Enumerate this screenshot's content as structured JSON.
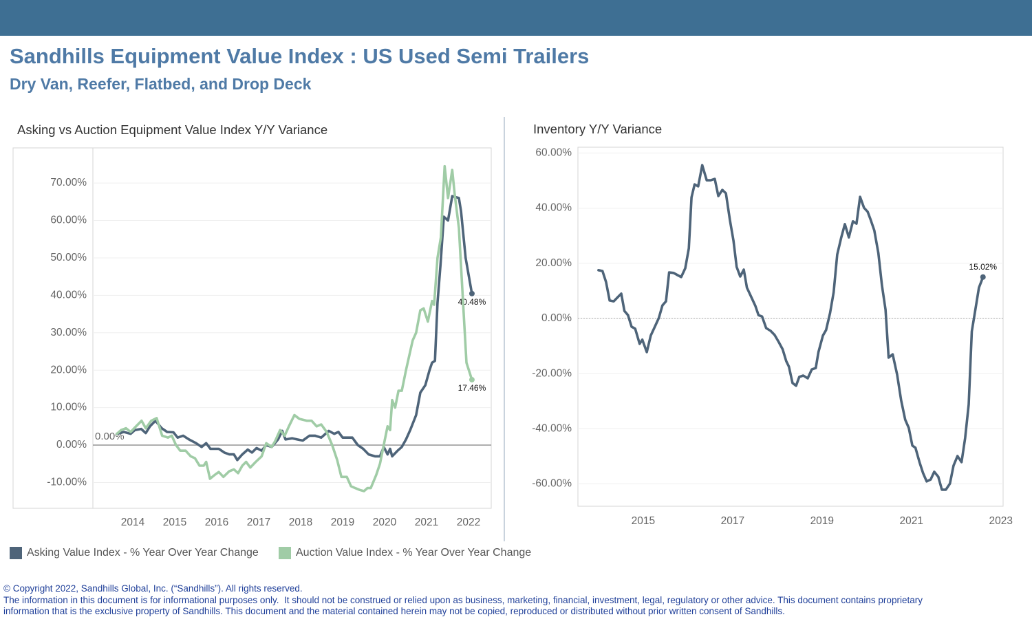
{
  "header": {
    "title": "Sandhills Equipment Value Index : US Used Semi Trailers",
    "subtitle": "Dry Van, Reefer, Flatbed, and Drop Deck"
  },
  "chart_data": [
    {
      "type": "line",
      "title": "Asking vs Auction Equipment Value Index Y/Y Variance",
      "xlim": [
        2013.05,
        2022.54
      ],
      "xticks": [
        2014,
        2015,
        2016,
        2017,
        2018,
        2019,
        2020,
        2021,
        2022
      ],
      "ylim": [
        -16.9,
        79.4
      ],
      "yticks": [
        {
          "value": -10,
          "label": "-10.00%"
        },
        {
          "value": 0,
          "label": "0.00%"
        },
        {
          "value": 10,
          "label": "10.00%"
        },
        {
          "value": 20,
          "label": "20.00%"
        },
        {
          "value": 30,
          "label": "30.00%"
        },
        {
          "value": 40,
          "label": "40.00%"
        },
        {
          "value": 50,
          "label": "50.00%"
        },
        {
          "value": 60,
          "label": "60.00%"
        },
        {
          "value": 70,
          "label": "70.00%"
        }
      ],
      "grid": true,
      "reference_line": {
        "value": 0,
        "label": "0.00%"
      },
      "series": [
        {
          "name": "Asking Value Index - % Year Over Year Change",
          "color": "#4e6479",
          "x": [
            2013.62,
            2013.79,
            2013.95,
            2014.05,
            2014.2,
            2014.31,
            2014.41,
            2014.54,
            2014.69,
            2014.82,
            2014.97,
            2015.07,
            2015.2,
            2015.34,
            2015.51,
            2015.64,
            2015.75,
            2015.85,
            2016.05,
            2016.18,
            2016.3,
            2016.41,
            2016.49,
            2016.61,
            2016.74,
            2016.84,
            2016.95,
            2017.07,
            2017.18,
            2017.31,
            2017.46,
            2017.56,
            2017.64,
            2017.8,
            2017.92,
            2018.05,
            2018.21,
            2018.34,
            2018.49,
            2018.67,
            2018.8,
            2018.9,
            2019.0,
            2019.11,
            2019.23,
            2019.36,
            2019.49,
            2019.62,
            2019.77,
            2019.89,
            2019.98,
            2020.07,
            2020.13,
            2020.18,
            2020.31,
            2020.41,
            2020.51,
            2020.61,
            2020.75,
            2020.85,
            2020.97,
            2021.07,
            2021.13,
            2021.2,
            2021.26,
            2021.33,
            2021.41,
            2021.51,
            2021.61,
            2021.77,
            2021.82,
            2021.93,
            2022.08
          ],
          "values": [
            3,
            3.5,
            3,
            4,
            4.3,
            3.2,
            5,
            6.5,
            4.5,
            3.5,
            3.4,
            2,
            2.5,
            1.5,
            0.5,
            -0.5,
            0.5,
            -1,
            -1,
            -2,
            -2.5,
            -2.5,
            -4,
            -2.5,
            -1.2,
            -2,
            -0.8,
            -1.5,
            0,
            -0.5,
            1.5,
            3.8,
            1.5,
            1.8,
            1.5,
            1.2,
            2.5,
            2.5,
            2,
            3.8,
            3,
            3.5,
            2,
            2,
            2,
            0,
            -1,
            -2.5,
            -3,
            -3,
            -0.5,
            -2.5,
            -1,
            -3,
            -1.5,
            -0.5,
            1.5,
            4,
            8,
            14,
            16,
            20,
            22,
            22.5,
            38,
            48,
            61,
            60,
            66.5,
            66,
            62.5,
            50,
            40.48
          ],
          "value_labels": [
            null,
            null,
            null,
            null,
            null,
            null,
            null,
            null,
            null,
            null,
            null,
            null,
            null,
            null,
            null,
            null,
            null,
            null,
            null,
            null,
            null,
            null,
            null,
            null,
            null,
            null,
            null,
            null,
            null,
            null,
            null,
            null,
            null,
            null,
            null,
            null,
            null,
            null,
            null,
            null,
            null,
            null,
            null,
            null,
            null,
            null,
            null,
            null,
            null,
            null,
            null,
            null,
            null,
            null,
            null,
            null,
            null,
            null,
            null,
            null,
            null,
            null,
            null,
            null,
            null,
            null,
            null,
            null,
            null,
            null,
            null,
            null,
            "40.48%"
          ]
        },
        {
          "name": "Auction Value Index - % Year Over Year Change",
          "color": "#a0cca6",
          "x": [
            2013.62,
            2013.72,
            2013.84,
            2013.95,
            2014.08,
            2014.21,
            2014.31,
            2014.44,
            2014.57,
            2014.7,
            2014.84,
            2014.93,
            2015.03,
            2015.13,
            2015.26,
            2015.38,
            2015.48,
            2015.59,
            2015.69,
            2015.75,
            2015.84,
            2015.95,
            2016.05,
            2016.16,
            2016.3,
            2016.41,
            2016.51,
            2016.61,
            2016.7,
            2016.8,
            2016.93,
            2017.07,
            2017.18,
            2017.31,
            2017.39,
            2017.51,
            2017.62,
            2017.72,
            2017.85,
            2017.97,
            2018.15,
            2018.26,
            2018.38,
            2018.49,
            2018.62,
            2018.75,
            2018.87,
            2018.97,
            2019.1,
            2019.2,
            2019.3,
            2019.41,
            2019.51,
            2019.59,
            2019.67,
            2019.8,
            2019.89,
            2019.98,
            2020.07,
            2020.13,
            2020.18,
            2020.25,
            2020.33,
            2020.41,
            2020.51,
            2020.61,
            2020.67,
            2020.75,
            2020.85,
            2020.93,
            2021.03,
            2021.13,
            2021.18,
            2021.26,
            2021.34,
            2021.43,
            2021.51,
            2021.61,
            2021.67,
            2021.77,
            2021.87,
            2021.95,
            2022.08
          ],
          "values": [
            3,
            4,
            4.5,
            3.5,
            5,
            6.5,
            4.5,
            6.5,
            7.2,
            2.5,
            2,
            2.5,
            0,
            -1.5,
            -1.5,
            -3,
            -3.5,
            -5.5,
            -5.5,
            -4.5,
            -9,
            -8,
            -7.2,
            -8.5,
            -7,
            -6.5,
            -7.5,
            -5.5,
            -4.5,
            -6,
            -4.5,
            -3,
            0.5,
            -0.5,
            1,
            4,
            2.5,
            5,
            8,
            7,
            6.5,
            6.5,
            5,
            5.5,
            3.5,
            0,
            -4,
            -8.5,
            -8.5,
            -11,
            -11.5,
            -12,
            -12.3,
            -11.5,
            -11.5,
            -8,
            -5,
            0,
            5,
            4,
            12,
            10,
            14.5,
            14.5,
            20,
            25,
            28,
            30,
            36,
            36.5,
            33,
            38.5,
            37.5,
            50,
            55.5,
            74.5,
            66,
            73.5,
            67,
            58,
            38,
            22,
            17.46
          ],
          "value_labels": [
            null,
            null,
            null,
            null,
            null,
            null,
            null,
            null,
            null,
            null,
            null,
            null,
            null,
            null,
            null,
            null,
            null,
            null,
            null,
            null,
            null,
            null,
            null,
            null,
            null,
            null,
            null,
            null,
            null,
            null,
            null,
            null,
            null,
            null,
            null,
            null,
            null,
            null,
            null,
            null,
            null,
            null,
            null,
            null,
            null,
            null,
            null,
            null,
            null,
            null,
            null,
            null,
            null,
            null,
            null,
            null,
            null,
            null,
            null,
            null,
            null,
            null,
            null,
            null,
            null,
            null,
            null,
            null,
            null,
            null,
            null,
            null,
            null,
            null,
            null,
            null,
            null,
            null,
            null,
            null,
            null,
            null,
            "17.46%"
          ]
        }
      ]
    },
    {
      "type": "line",
      "title": "Inventory Y/Y Variance",
      "xlim": [
        2013.54,
        2023.05
      ],
      "xticks": [
        2015,
        2017,
        2019,
        2021,
        2023
      ],
      "ylim": [
        -68.1,
        62.1
      ],
      "yticks": [
        {
          "value": -60,
          "label": "-60.00%"
        },
        {
          "value": -40,
          "label": "-40.00%"
        },
        {
          "value": -20,
          "label": "-20.00%"
        },
        {
          "value": 0,
          "label": "0.00%"
        },
        {
          "value": 20,
          "label": "20.00%"
        },
        {
          "value": 40,
          "label": "40.00%"
        },
        {
          "value": 60,
          "label": "60.00%"
        }
      ],
      "grid": true,
      "reference_line": {
        "value": 0
      },
      "color": "#4e6479",
      "x": [
        2014.0,
        2014.09,
        2014.17,
        2014.25,
        2014.34,
        2014.43,
        2014.51,
        2014.58,
        2014.66,
        2014.74,
        2014.82,
        2014.92,
        2014.98,
        2015.08,
        2015.17,
        2015.26,
        2015.35,
        2015.43,
        2015.51,
        2015.58,
        2015.68,
        2015.77,
        2015.85,
        2015.94,
        2016.02,
        2016.08,
        2016.15,
        2016.23,
        2016.32,
        2016.42,
        2016.51,
        2016.6,
        2016.68,
        2016.77,
        2016.85,
        2016.94,
        2017.02,
        2017.09,
        2017.17,
        2017.25,
        2017.32,
        2017.42,
        2017.51,
        2017.58,
        2017.66,
        2017.75,
        2017.85,
        2017.94,
        2018.03,
        2018.12,
        2018.2,
        2018.26,
        2018.34,
        2018.42,
        2018.49,
        2018.58,
        2018.68,
        2018.77,
        2018.86,
        2018.92,
        2019.02,
        2019.09,
        2019.18,
        2019.26,
        2019.34,
        2019.43,
        2019.51,
        2019.6,
        2019.69,
        2019.77,
        2019.85,
        2019.94,
        2020.02,
        2020.09,
        2020.17,
        2020.26,
        2020.34,
        2020.42,
        2020.49,
        2020.58,
        2020.68,
        2020.77,
        2020.86,
        2020.94,
        2021.02,
        2021.09,
        2021.18,
        2021.26,
        2021.34,
        2021.43,
        2021.51,
        2021.6,
        2021.68,
        2021.77,
        2021.86,
        2021.94,
        2022.03,
        2022.12,
        2022.2,
        2022.28,
        2022.35,
        2022.43,
        2022.51,
        2022.6
      ],
      "values": [
        17.5,
        17.2,
        13.2,
        6.5,
        6.2,
        7.7,
        9,
        2.7,
        1.2,
        -3,
        -3.7,
        -9.2,
        -7.7,
        -12.2,
        -6.2,
        -3,
        0.2,
        4.7,
        6.2,
        16.7,
        16.5,
        15.7,
        15,
        18.2,
        25.4,
        43.9,
        48.6,
        47.9,
        55.6,
        50.1,
        50.1,
        50.6,
        44.4,
        46.6,
        45.4,
        35.7,
        28.2,
        18.7,
        15.2,
        17.7,
        11.2,
        7.7,
        4.5,
        1.2,
        0.7,
        -3.5,
        -4.5,
        -6,
        -8.5,
        -11.2,
        -15.5,
        -17.5,
        -23.4,
        -24.4,
        -21.2,
        -20.7,
        -21.7,
        -18.5,
        -18,
        -12.2,
        -6.2,
        -4.2,
        2,
        9.5,
        23.2,
        29.4,
        34.2,
        29.4,
        35.2,
        34.4,
        44.1,
        40.1,
        38.7,
        35.7,
        31.9,
        23.7,
        12,
        3.2,
        -14.2,
        -13,
        -20.4,
        -29.7,
        -36.7,
        -39.7,
        -46.1,
        -46.9,
        -52.1,
        -56.1,
        -59.1,
        -58.4,
        -55.6,
        -57.4,
        -62.1,
        -62.1,
        -59.9,
        -53.4,
        -49.9,
        -52.1,
        -43.4,
        -31.2,
        -4.7,
        3.2,
        11.2,
        15.02
      ],
      "value_labels": [
        null,
        null,
        null,
        null,
        null,
        null,
        null,
        null,
        null,
        null,
        null,
        null,
        null,
        null,
        null,
        null,
        null,
        null,
        null,
        null,
        null,
        null,
        null,
        null,
        null,
        null,
        null,
        null,
        null,
        null,
        null,
        null,
        null,
        null,
        null,
        null,
        null,
        null,
        null,
        null,
        null,
        null,
        null,
        null,
        null,
        null,
        null,
        null,
        null,
        null,
        null,
        null,
        null,
        null,
        null,
        null,
        null,
        null,
        null,
        null,
        null,
        null,
        null,
        null,
        null,
        null,
        null,
        null,
        null,
        null,
        null,
        null,
        null,
        null,
        null,
        null,
        null,
        null,
        null,
        null,
        null,
        null,
        null,
        null,
        null,
        null,
        null,
        null,
        null,
        null,
        null,
        null,
        null,
        null,
        null,
        null,
        null,
        null,
        null,
        null,
        null,
        null,
        null,
        "15.02%"
      ]
    }
  ],
  "footer": [
    "© Copyright 2022, Sandhills Global, Inc. (“Sandhills”). All rights reserved.",
    "The information in this document is for informational purposes only.  It should not be construed or relied upon as business, marketing, financial, investment, legal, regulatory or other advice. This document contains proprietary",
    "information that is the exclusive property of Sandhills. This document and the material contained herein may not be copied, reproduced or distributed without prior written consent of Sandhills."
  ]
}
